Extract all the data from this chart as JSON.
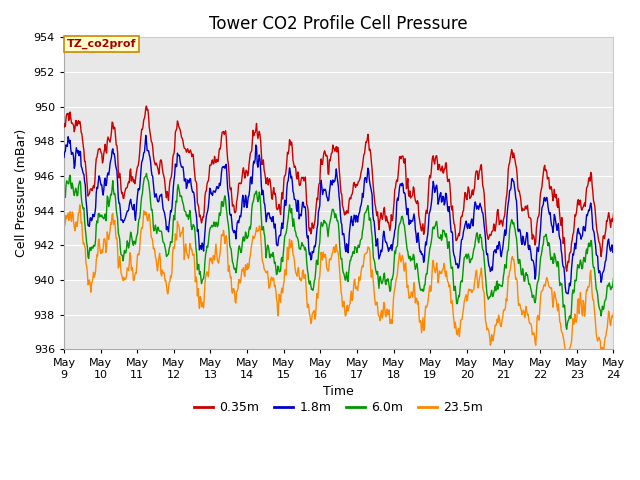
{
  "title": "Tower CO2 Profile Cell Pressure",
  "xlabel": "Time",
  "ylabel": "Cell Pressure (mBar)",
  "ylim": [
    936,
    954
  ],
  "yticks": [
    936,
    938,
    940,
    942,
    944,
    946,
    948,
    950,
    952,
    954
  ],
  "legend_label": "TZ_co2prof",
  "series_labels": [
    "0.35m",
    "1.8m",
    "6.0m",
    "23.5m"
  ],
  "series_colors": [
    "#cc0000",
    "#0000cc",
    "#009900",
    "#ff8800"
  ],
  "n_points": 800,
  "t_start": 0,
  "t_end": 15,
  "background_color": "#ffffff",
  "plot_bg_color": "#e8e8e8",
  "grid_color": "#ffffff",
  "title_fontsize": 12,
  "axis_fontsize": 9,
  "tick_fontsize": 8,
  "legend_fontsize": 9,
  "line_width": 1.0,
  "x_tick_labels": [
    "May 9",
    "May 10",
    "May 11",
    "May 12",
    "May 13",
    "May 14",
    "May 15",
    "May 16",
    "May 17",
    "May 18",
    "May 19",
    "May 20",
    "May 21",
    "May 22",
    "May 23",
    "May 24"
  ],
  "x_tick_positions": [
    0,
    1,
    2,
    3,
    4,
    5,
    6,
    7,
    8,
    9,
    10,
    11,
    12,
    13,
    14,
    15
  ]
}
